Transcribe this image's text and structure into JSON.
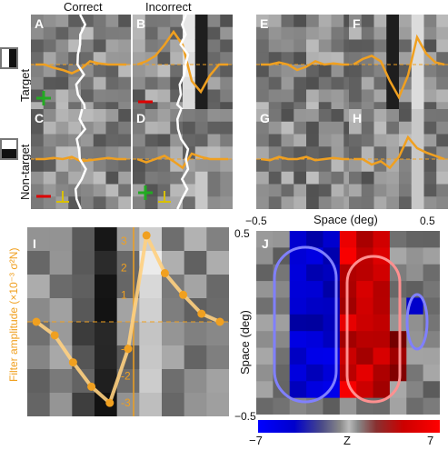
{
  "headers": {
    "correct": "Correct",
    "incorrect": "Incorrect"
  },
  "row_labels": {
    "target": "Target",
    "nontarget": "Non-target"
  },
  "panels": {
    "A": "A",
    "B": "B",
    "C": "C",
    "D": "D",
    "E": "E",
    "F": "F",
    "G": "G",
    "H": "H",
    "I": "I",
    "J": "J"
  },
  "panel_I": {
    "ylabel": "Filter amplitude (×10⁻³ σ²N)",
    "yticks": [
      "3",
      "2",
      "1",
      "-1",
      "-2",
      "-3"
    ]
  },
  "panel_J": {
    "xlabel": "Space (deg)",
    "ylabel": "Space (deg)",
    "x_min": "−0.5",
    "x_max": "0.5",
    "y_max": "0.5",
    "y_min": "−0.5",
    "colorbar_min": "−7",
    "colorbar_label": "Z",
    "colorbar_max": "7"
  },
  "colors": {
    "accent": "#f0a020",
    "positive": "#dd0000",
    "negative": "#0000dd",
    "green": "#22aa22",
    "yellow": "#d8c000"
  },
  "chart_data": {
    "type": "line",
    "title": "",
    "xlabel": "",
    "ylabel": "Filter amplitude (×10⁻³ σ²N)",
    "x": [
      -5,
      -4,
      -3,
      -2,
      -1,
      0,
      1,
      2,
      3,
      4,
      5
    ],
    "series": [
      {
        "values": [
          0,
          -0.5,
          -1.5,
          -2.4,
          -3.0,
          -1.0,
          3.2,
          1.8,
          1.0,
          0.3,
          0
        ]
      }
    ],
    "ylim": [
      -3.5,
      3.5
    ]
  }
}
